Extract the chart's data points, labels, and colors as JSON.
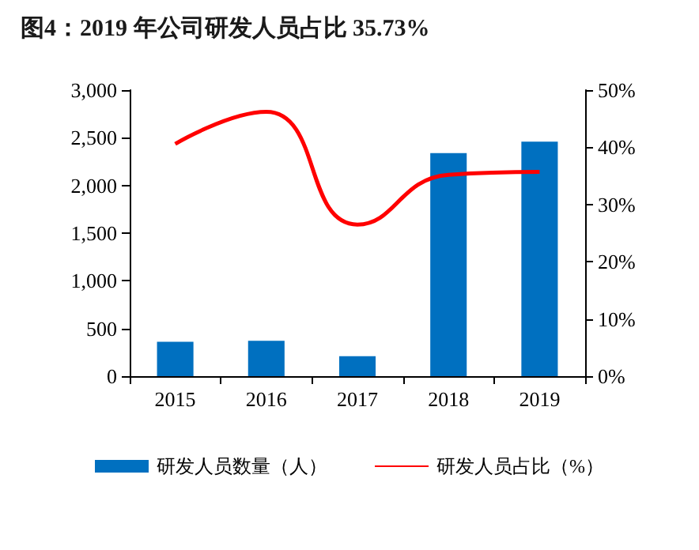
{
  "chart_data": {
    "type": "bar",
    "title": "图4：2019 年公司研发人员占比 35.73%",
    "categories": [
      "2015",
      "2016",
      "2017",
      "2018",
      "2019"
    ],
    "series": [
      {
        "name": "研发人员数量（人）",
        "color": "#0070c0",
        "values": [
          360,
          370,
          210,
          2340,
          2460
        ]
      },
      {
        "name": "研发人员占比（%）",
        "type": "line",
        "axis": "y2",
        "color": "#ff0000",
        "values": [
          40.6,
          46.2,
          26.5,
          35.2,
          35.7
        ]
      }
    ],
    "ylim": [
      0,
      3000
    ],
    "yticks": [
      {
        "value": 0,
        "label": "0"
      },
      {
        "value": 500,
        "label": "500"
      },
      {
        "value": 1000,
        "label": "1,000"
      },
      {
        "value": 1500,
        "label": "1,500"
      },
      {
        "value": 2000,
        "label": "2,000"
      },
      {
        "value": 2500,
        "label": "2,500"
      },
      {
        "value": 3000,
        "label": "3,000"
      }
    ],
    "y2lim": [
      0,
      50
    ],
    "y2ticks": [
      {
        "value": 0,
        "label": "0%"
      },
      {
        "value": 10,
        "label": "10%"
      },
      {
        "value": 20,
        "label": "20%"
      },
      {
        "value": 30,
        "label": "30%"
      },
      {
        "value": 40,
        "label": "40%"
      },
      {
        "value": 50,
        "label": "50%"
      }
    ],
    "legend": "bottom",
    "grid": false,
    "marker": "none"
  }
}
